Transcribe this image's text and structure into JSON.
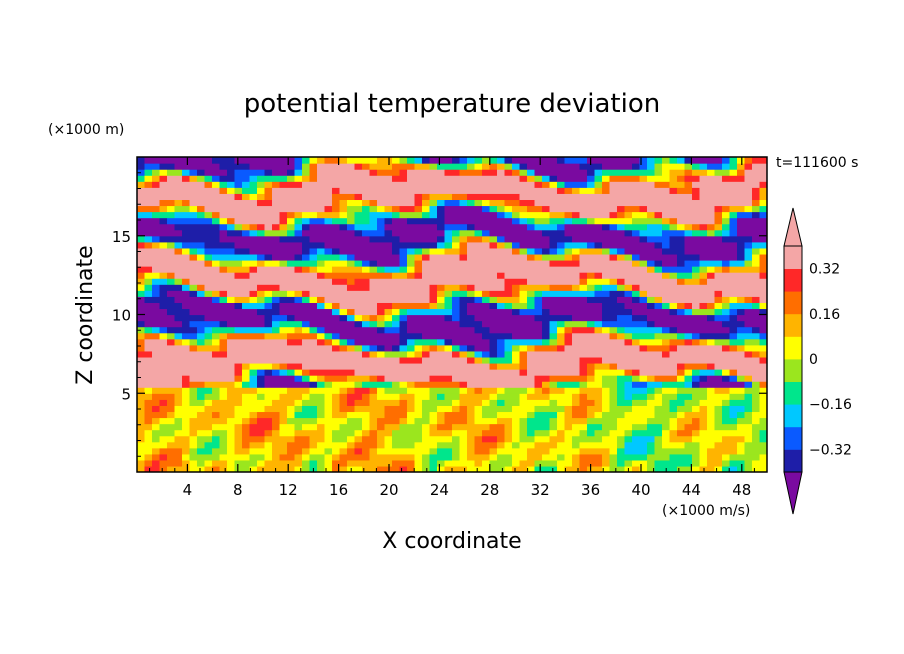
{
  "chart_data": {
    "type": "heatmap",
    "title": "potential temperature deviation",
    "xlabel": "X coordinate",
    "ylabel": "Z coordinate",
    "x_unit": "(×1000 m/s)",
    "y_unit": "(×1000 m)",
    "time_label": "t=111600 s",
    "xlim": [
      0,
      50
    ],
    "ylim": [
      0,
      20
    ],
    "x_ticks": [
      4,
      8,
      12,
      16,
      20,
      24,
      28,
      32,
      36,
      40,
      44,
      48
    ],
    "y_ticks": [
      5,
      10,
      15
    ],
    "colorbar": {
      "levels": [
        -0.4,
        -0.32,
        -0.24,
        -0.16,
        -0.08,
        0,
        0.08,
        0.16,
        0.24,
        0.32,
        0.4
      ],
      "tick_labels": [
        "0.32",
        "0.16",
        "0",
        "−0.16",
        "−0.32"
      ],
      "tick_values": [
        0.32,
        0.16,
        0,
        -0.16,
        -0.32
      ],
      "colors": [
        "#7a0aa0",
        "#1e1ea8",
        "#0a5aff",
        "#00c8ff",
        "#00e68c",
        "#9be61e",
        "#ffff00",
        "#ffb400",
        "#ff6e00",
        "#ff2828",
        "#f4a6a6"
      ],
      "extend": "both"
    }
  }
}
